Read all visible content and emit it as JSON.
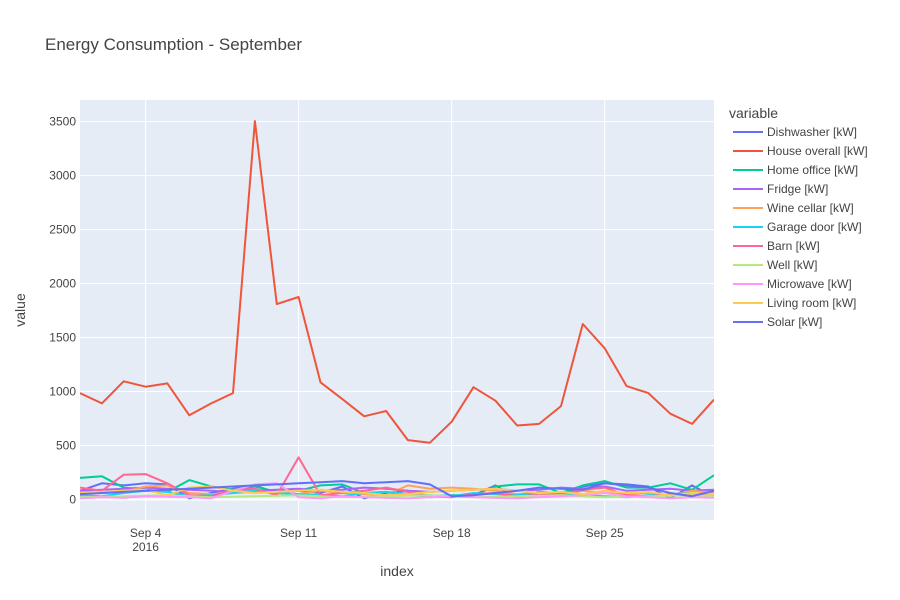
{
  "chart_data": {
    "type": "line",
    "title": "Energy Consumption - September",
    "xlabel": "index",
    "ylabel": "value",
    "legend_title": "variable",
    "legend_placement": "right",
    "grid": true,
    "xlim": [
      "2016-09-01",
      "2016-09-30"
    ],
    "ylim": [
      -190,
      3700
    ],
    "y_ticks": [
      0,
      500,
      1000,
      1500,
      2000,
      2500,
      3000,
      3500
    ],
    "x_ticks": [
      {
        "date": "2016-09-04",
        "label": "Sep 4",
        "sublabel": "2016"
      },
      {
        "date": "2016-09-11",
        "label": "Sep 11",
        "sublabel": ""
      },
      {
        "date": "2016-09-18",
        "label": "Sep 18",
        "sublabel": ""
      },
      {
        "date": "2016-09-25",
        "label": "Sep 25",
        "sublabel": ""
      }
    ],
    "x": [
      "2016-09-01",
      "2016-09-02",
      "2016-09-03",
      "2016-09-04",
      "2016-09-05",
      "2016-09-06",
      "2016-09-07",
      "2016-09-08",
      "2016-09-09",
      "2016-09-10",
      "2016-09-11",
      "2016-09-12",
      "2016-09-13",
      "2016-09-14",
      "2016-09-15",
      "2016-09-16",
      "2016-09-17",
      "2016-09-18",
      "2016-09-19",
      "2016-09-20",
      "2016-09-21",
      "2016-09-22",
      "2016-09-23",
      "2016-09-24",
      "2016-09-25",
      "2016-09-26",
      "2016-09-27",
      "2016-09-28",
      "2016-09-29",
      "2016-09-30"
    ],
    "series": [
      {
        "name": "Dishwasher [kW]",
        "color": "#636efa",
        "values": [
          80,
          150,
          130,
          150,
          140,
          10,
          60,
          100,
          130,
          60,
          80,
          60,
          120,
          10,
          60,
          80,
          20,
          30,
          40,
          130,
          10,
          60,
          50,
          120,
          150,
          140,
          120,
          10,
          130,
          20
        ]
      },
      {
        "name": "House overall [kW]",
        "color": "#ef553b",
        "values": [
          985,
          890,
          1095,
          1045,
          1075,
          780,
          890,
          985,
          3505,
          1810,
          1875,
          1085,
          930,
          770,
          820,
          550,
          525,
          720,
          1040,
          915,
          685,
          700,
          865,
          1625,
          1400,
          1050,
          985,
          795,
          700,
          925
        ]
      },
      {
        "name": "Home office [kW]",
        "color": "#00cc96",
        "values": [
          200,
          215,
          110,
          90,
          70,
          180,
          120,
          90,
          120,
          70,
          80,
          130,
          140,
          60,
          70,
          40,
          30,
          40,
          40,
          120,
          140,
          140,
          60,
          130,
          170,
          110,
          110,
          150,
          90,
          225
        ]
      },
      {
        "name": "Fridge [kW]",
        "color": "#ab63fa",
        "values": [
          80,
          90,
          100,
          110,
          100,
          90,
          80,
          70,
          80,
          90,
          100,
          80,
          90,
          110,
          100,
          80,
          70,
          80,
          90,
          100,
          80,
          90,
          110,
          100,
          120,
          80,
          90,
          100,
          80,
          90
        ]
      },
      {
        "name": "Wine cellar [kW]",
        "color": "#ffa15a",
        "values": [
          50,
          60,
          70,
          120,
          130,
          60,
          50,
          60,
          70,
          60,
          50,
          80,
          60,
          50,
          40,
          130,
          100,
          110,
          100,
          80,
          50,
          60,
          40,
          80,
          60,
          50,
          60,
          40,
          80,
          60
        ]
      },
      {
        "name": "Garage door [kW]",
        "color": "#19d3f3",
        "values": [
          40,
          30,
          60,
          80,
          70,
          30,
          40,
          60,
          80,
          60,
          50,
          40,
          30,
          60,
          70,
          50,
          40,
          30,
          60,
          50,
          40,
          70,
          60,
          40,
          30,
          20,
          40,
          50,
          60,
          40
        ]
      },
      {
        "name": "Barn [kW]",
        "color": "#ff6692",
        "values": [
          110,
          80,
          230,
          235,
          150,
          40,
          30,
          90,
          100,
          40,
          390,
          40,
          60,
          80,
          110,
          70,
          30,
          20,
          50,
          60,
          30,
          40,
          50,
          90,
          110,
          40,
          30,
          50,
          40,
          30
        ]
      },
      {
        "name": "Well [kW]",
        "color": "#b6e880",
        "values": [
          20,
          25,
          30,
          35,
          40,
          30,
          20,
          25,
          30,
          35,
          40,
          30,
          20,
          25,
          30,
          35,
          40,
          30,
          20,
          25,
          30,
          35,
          40,
          30,
          20,
          25,
          30,
          35,
          40,
          30
        ]
      },
      {
        "name": "Microwave [kW]",
        "color": "#ff97ff",
        "values": [
          10,
          20,
          15,
          30,
          25,
          20,
          10,
          80,
          140,
          150,
          20,
          10,
          30,
          20,
          15,
          10,
          20,
          30,
          20,
          15,
          10,
          20,
          30,
          40,
          60,
          30,
          20,
          10,
          20,
          15
        ]
      },
      {
        "name": "Living room [kW]",
        "color": "#fecb52",
        "values": [
          60,
          70,
          80,
          90,
          40,
          110,
          120,
          80,
          60,
          70,
          80,
          90,
          70,
          60,
          40,
          50,
          70,
          80,
          90,
          100,
          80,
          60,
          70,
          50,
          80,
          60,
          70,
          40,
          60,
          50
        ]
      },
      {
        "name": "Solar [kW]",
        "color": "#636efa",
        "values": [
          50,
          60,
          70,
          80,
          90,
          100,
          110,
          120,
          130,
          140,
          150,
          160,
          170,
          150,
          160,
          170,
          140,
          30,
          40,
          60,
          80,
          110,
          100,
          90,
          150,
          130,
          110,
          60,
          30,
          80
        ]
      }
    ]
  }
}
